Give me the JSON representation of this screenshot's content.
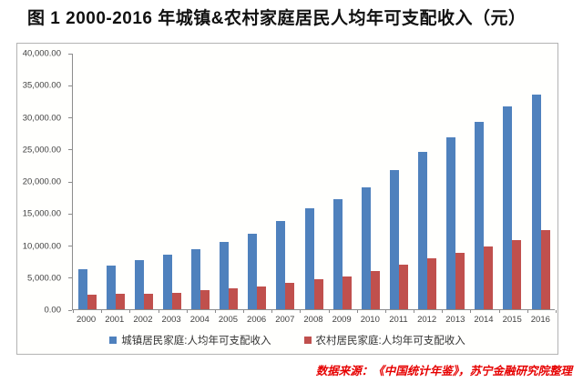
{
  "title": "图 1  2000-2016 年城镇&农村家庭居民人均年可支配收入（元）",
  "source_note": "数据来源：《中国统计年鉴》，苏宁金融研究院整理",
  "colors": {
    "urban_bar": "#4f81bd",
    "rural_bar": "#c0504d",
    "axis": "#8c8c8c",
    "source_text": "#e60000"
  },
  "chart_data": {
    "type": "bar",
    "title": "图 1 2000-2016 年城镇&农村家庭居民人均年可支配收入（元）",
    "categories": [
      "2000",
      "2001",
      "2002",
      "2003",
      "2004",
      "2005",
      "2006",
      "2007",
      "2008",
      "2009",
      "2010",
      "2011",
      "2012",
      "2013",
      "2014",
      "2015",
      "2016"
    ],
    "series": [
      {
        "name": "城镇居民家庭:人均年可支配收入",
        "color": "#4f81bd",
        "values": [
          6280,
          6860,
          7703,
          8472,
          9422,
          10493,
          11760,
          13786,
          15781,
          17175,
          19109,
          21810,
          24565,
          26955,
          29381,
          31790,
          33616
        ]
      },
      {
        "name": "农村居民家庭:人均年可支配收入",
        "color": "#c0504d",
        "values": [
          2253,
          2366,
          2476,
          2622,
          2936,
          3255,
          3587,
          4140,
          4761,
          5153,
          5919,
          6977,
          7917,
          8896,
          9892,
          10772,
          12363
        ]
      }
    ],
    "xlabel": "",
    "ylabel": "",
    "ylim": [
      0,
      40000
    ],
    "y_tick_step": 5000,
    "y_tick_labels": [
      "40,000.00",
      "35,000.00",
      "30,000.00",
      "25,000.00",
      "20,000.00",
      "15,000.00",
      "10,000.00",
      "5,000.00",
      "0.00"
    ],
    "grid": false,
    "legend_position": "bottom"
  }
}
